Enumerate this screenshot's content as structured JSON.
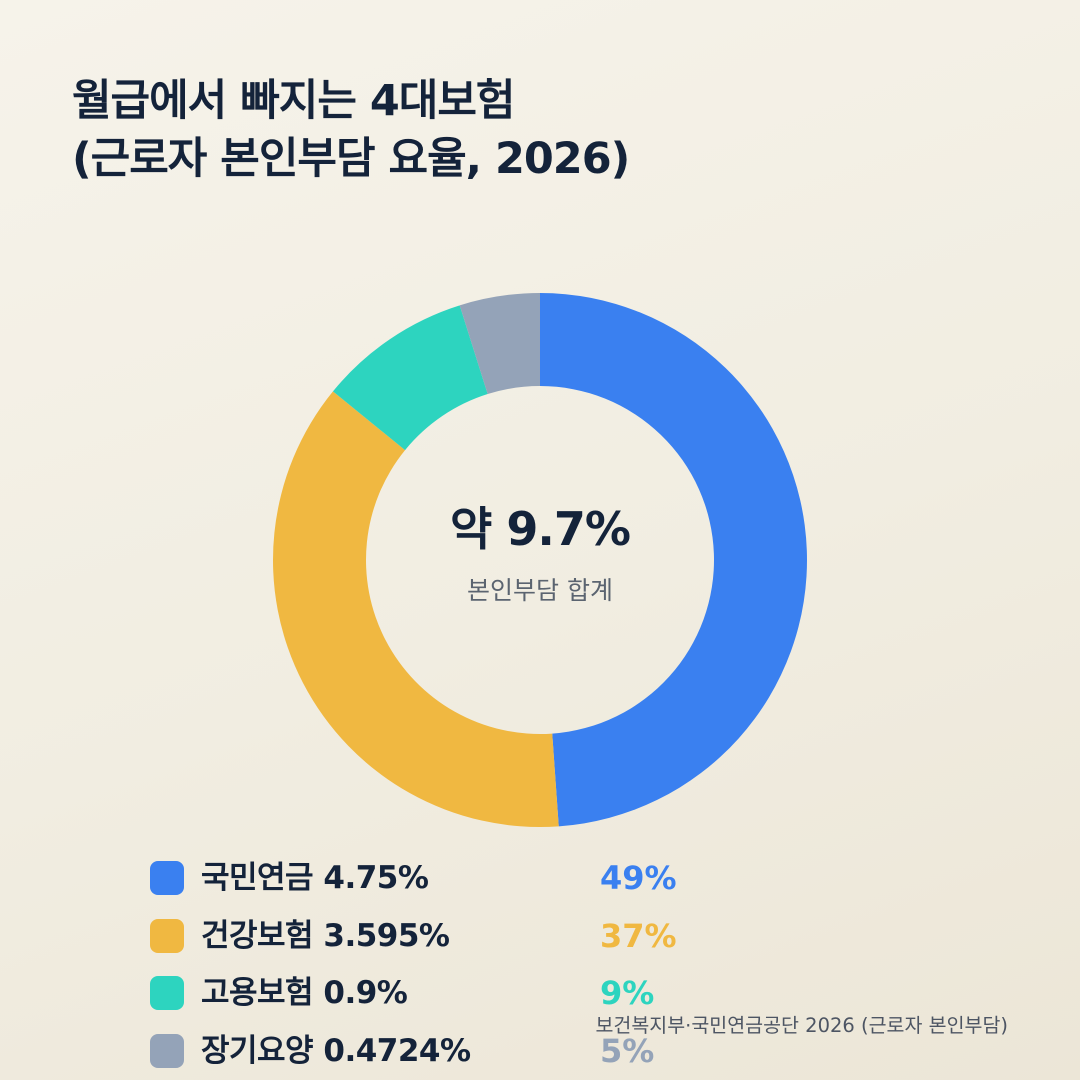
{
  "title_lines": [
    "월급에서 빠지는 4대보험",
    "(근로자 본인부담 요율, 2026)"
  ],
  "center": {
    "value": "약 9.7%",
    "label": "본인부담 합계"
  },
  "legend": [
    {
      "label": "국민연금 4.75%",
      "share": "49%",
      "color": "#3a80f0"
    },
    {
      "label": "건강보험 3.595%",
      "share": "37%",
      "color": "#f0b841"
    },
    {
      "label": "고용보험 0.9%",
      "share": "9%",
      "color": "#2dd4bf"
    },
    {
      "label": "장기요양 0.4724%",
      "share": "5%",
      "color": "#94a3b8"
    }
  ],
  "source": "보건복지부·국민연금공단 2026 (근로자 본인부담)",
  "chart_data": {
    "type": "pie",
    "donut": true,
    "categories": [
      "국민연금",
      "건강보험",
      "고용보험",
      "장기요양"
    ],
    "values": [
      4.75,
      3.595,
      0.9,
      0.4724
    ],
    "shares_percent": [
      49,
      37,
      9,
      5
    ],
    "colors": [
      "#3a80f0",
      "#f0b841",
      "#2dd4bf",
      "#94a3b8"
    ],
    "start_angle": "12 o'clock",
    "direction": "clockwise",
    "title": "월급에서 빠지는 4대보험 (근로자 본인부담 요율, 2026)",
    "legend_position": "bottom"
  }
}
